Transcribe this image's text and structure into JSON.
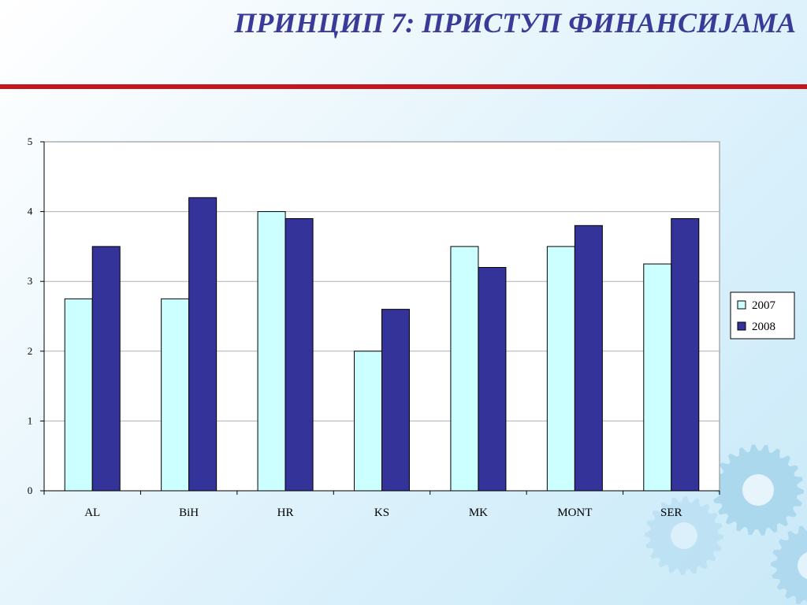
{
  "slide": {
    "title": "ПРИНЦИП 7: ПРИСТУП ФИНАНСИЈАМА"
  },
  "colors": {
    "title": "#3a3a98",
    "rule": "#c4161c",
    "series_2007": "#ccffff",
    "series_2008": "#333399",
    "gear": "#a9d6ec"
  },
  "decoration": {
    "icon": "gear-cluster-icon"
  },
  "chart_data": {
    "type": "bar",
    "categories": [
      "AL",
      "BiH",
      "HR",
      "KS",
      "MK",
      "MONT",
      "SER"
    ],
    "series": [
      {
        "name": "2007",
        "values": [
          2.75,
          2.75,
          4.0,
          2.0,
          3.5,
          3.5,
          3.25
        ]
      },
      {
        "name": "2008",
        "values": [
          3.5,
          4.2,
          3.9,
          2.6,
          3.2,
          3.8,
          3.9
        ]
      }
    ],
    "y_ticks": [
      "0",
      "1",
      "2",
      "3",
      "4",
      "5"
    ],
    "ylim": [
      0,
      5
    ],
    "grid": true,
    "legend": "right"
  }
}
